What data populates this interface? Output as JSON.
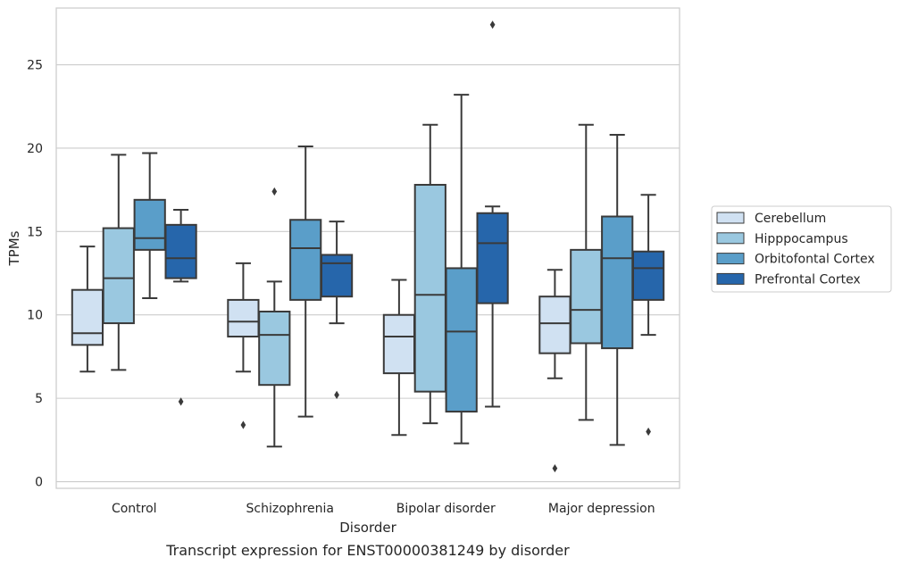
{
  "chart_data": {
    "type": "box",
    "title": "",
    "caption": "Transcript expression for ENST00000381249 by disorder",
    "xlabel": "Disorder",
    "ylabel": "TPMs",
    "ylim": [
      -0.4,
      28.4
    ],
    "yticks": [
      0,
      5,
      10,
      15,
      20,
      25
    ],
    "grid": "y",
    "legend_position": "right",
    "categories": [
      "Control",
      "Schizophrenia",
      "Bipolar disorder",
      "Major depression"
    ],
    "series": [
      {
        "name": "Cerebellum",
        "color": "#d0e1f2",
        "boxes": [
          {
            "whislo": 6.6,
            "q1": 8.2,
            "med": 8.9,
            "q3": 11.5,
            "whishi": 14.1,
            "fliers": []
          },
          {
            "whislo": 6.6,
            "q1": 8.7,
            "med": 9.6,
            "q3": 10.9,
            "whishi": 13.1,
            "fliers": [
              3.4
            ]
          },
          {
            "whislo": 2.8,
            "q1": 6.5,
            "med": 8.7,
            "q3": 10.0,
            "whishi": 12.1,
            "fliers": []
          },
          {
            "whislo": 6.2,
            "q1": 7.7,
            "med": 9.5,
            "q3": 11.1,
            "whishi": 12.7,
            "fliers": [
              0.8
            ]
          }
        ]
      },
      {
        "name": "Hipppocampus",
        "color": "#9ac8e0",
        "boxes": [
          {
            "whislo": 6.7,
            "q1": 9.5,
            "med": 12.2,
            "q3": 15.2,
            "whishi": 19.6,
            "fliers": []
          },
          {
            "whislo": 2.1,
            "q1": 5.8,
            "med": 8.8,
            "q3": 10.2,
            "whishi": 12.0,
            "fliers": [
              17.4
            ]
          },
          {
            "whislo": 3.5,
            "q1": 5.4,
            "med": 11.2,
            "q3": 17.8,
            "whishi": 21.4,
            "fliers": []
          },
          {
            "whislo": 3.7,
            "q1": 8.3,
            "med": 10.3,
            "q3": 13.9,
            "whishi": 21.4,
            "fliers": []
          }
        ]
      },
      {
        "name": "Orbitofontal Cortex",
        "color": "#5a9ec9",
        "boxes": [
          {
            "whislo": 11.0,
            "q1": 13.9,
            "med": 14.6,
            "q3": 16.9,
            "whishi": 19.7,
            "fliers": []
          },
          {
            "whislo": 3.9,
            "q1": 10.9,
            "med": 14.0,
            "q3": 15.7,
            "whishi": 20.1,
            "fliers": []
          },
          {
            "whislo": 2.3,
            "q1": 4.2,
            "med": 9.0,
            "q3": 12.8,
            "whishi": 23.2,
            "fliers": []
          },
          {
            "whislo": 2.2,
            "q1": 8.0,
            "med": 13.4,
            "q3": 15.9,
            "whishi": 20.8,
            "fliers": []
          }
        ]
      },
      {
        "name": "Prefrontal Cortex",
        "color": "#2666ab",
        "boxes": [
          {
            "whislo": 12.0,
            "q1": 12.2,
            "med": 13.4,
            "q3": 15.4,
            "whishi": 16.3,
            "fliers": [
              4.8
            ]
          },
          {
            "whislo": 9.5,
            "q1": 11.1,
            "med": 13.1,
            "q3": 13.6,
            "whishi": 15.6,
            "fliers": [
              5.2
            ]
          },
          {
            "whislo": 4.5,
            "q1": 10.7,
            "med": 14.3,
            "q3": 16.1,
            "whishi": 16.5,
            "fliers": [
              27.4
            ]
          },
          {
            "whislo": 8.8,
            "q1": 10.9,
            "med": 12.8,
            "q3": 13.8,
            "whishi": 17.2,
            "fliers": [
              3.0
            ]
          }
        ]
      }
    ]
  },
  "colors": {
    "grid": "#cccccc",
    "frame": "#cccccc",
    "line": "#3a3a3a"
  }
}
